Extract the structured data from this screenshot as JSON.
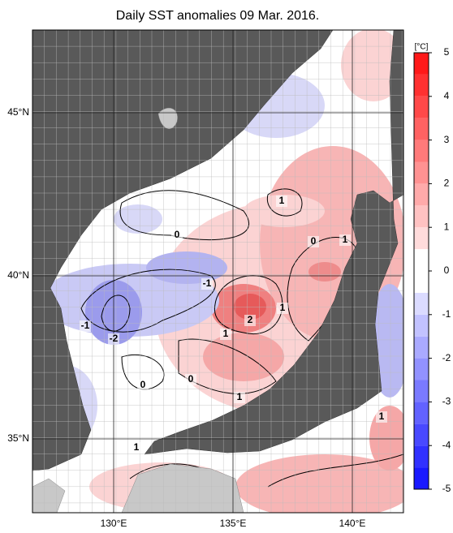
{
  "title": "Daily SST anomalies 09 Mar. 2016.",
  "map": {
    "lon_ticks": [
      {
        "value": 130,
        "label": "130°E"
      },
      {
        "value": 135,
        "label": "135°E"
      },
      {
        "value": 140,
        "label": "140°E"
      }
    ],
    "lat_ticks": [
      {
        "value": 35,
        "label": "35°N"
      },
      {
        "value": 40,
        "label": "40°N"
      },
      {
        "value": 45,
        "label": "45°N"
      }
    ],
    "contour_labels": [
      "1",
      "0",
      "1",
      "0",
      "-1",
      "1",
      "2",
      "-1",
      "-2",
      "1",
      "0",
      "0",
      "1",
      "1",
      "1"
    ]
  },
  "colorbar": {
    "unit": "[°C]",
    "range": [
      -5,
      5
    ],
    "ticks": [
      -5,
      -4,
      -3,
      -2,
      -1,
      0,
      1,
      2,
      3,
      4,
      5
    ]
  }
}
